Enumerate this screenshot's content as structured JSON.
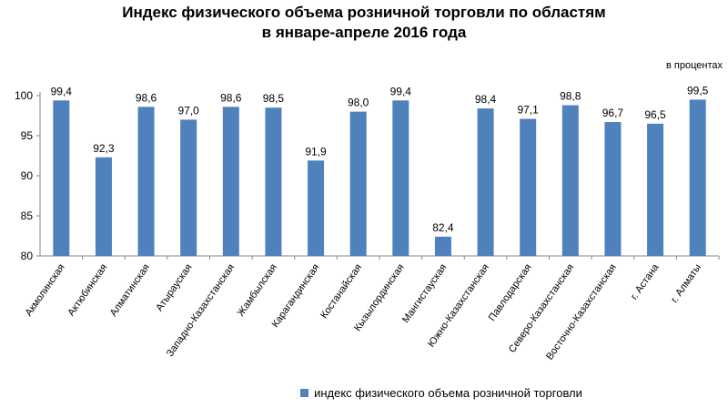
{
  "chart_data": {
    "type": "bar",
    "title_line1": "Индекс физического объема розничной торговли по областям",
    "title_line2": "в январе-апреле 2016 года",
    "unit_label": "в процентах",
    "categories": [
      "Акмолинская",
      "Актюбинская",
      "Алматинская",
      "Атырауская",
      "Западно-Казахстанская",
      "Жамбылская",
      "Карагандинская",
      "Костанайская",
      "Кызылординская",
      "Мангистауская",
      "Южно-Казахстанская",
      "Павлодарская",
      "Северо-Казахстанская",
      "Восточно-Казахстанская",
      "г. Астана",
      "г. Алматы"
    ],
    "values": [
      99.4,
      92.3,
      98.6,
      97.0,
      98.6,
      98.5,
      91.9,
      98.0,
      99.4,
      82.4,
      98.4,
      97.1,
      98.8,
      96.7,
      96.5,
      99.5
    ],
    "data_labels": [
      "99,4",
      "92,3",
      "98,6",
      "97,0",
      "98,6",
      "98,5",
      "91,9",
      "98,0",
      "99,4",
      "82,4",
      "98,4",
      "97,1",
      "98,8",
      "96,7",
      "96,5",
      "99,5"
    ],
    "y_ticks": [
      80,
      85,
      90,
      95,
      100
    ],
    "ylim": [
      80,
      100
    ],
    "series_name": "индекс физического объема розничной торговли",
    "color": "#4F81BD"
  }
}
